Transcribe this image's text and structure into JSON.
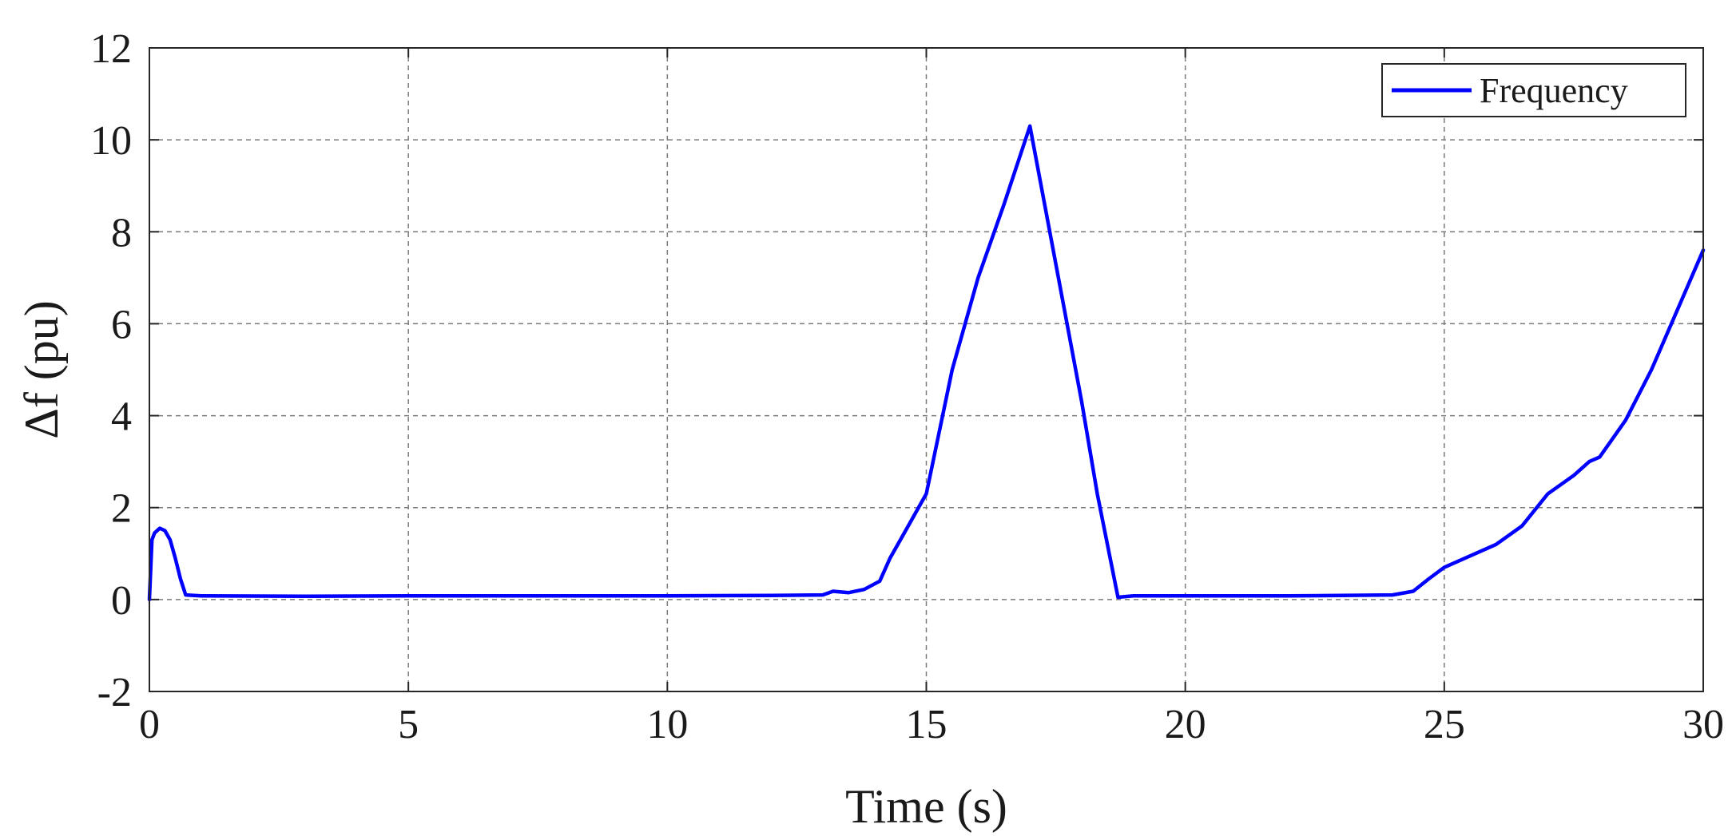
{
  "chart_data": {
    "type": "line",
    "title": "",
    "xlabel": "Time (s)",
    "ylabel": "Δf (pu)",
    "xlim": [
      0,
      30
    ],
    "ylim": [
      -2,
      12
    ],
    "xticks": [
      0,
      5,
      10,
      15,
      20,
      25,
      30
    ],
    "yticks": [
      -2,
      0,
      2,
      4,
      6,
      8,
      10,
      12
    ],
    "grid": true,
    "legend_position": "top-right",
    "series": [
      {
        "name": "Frequency",
        "color": "#0000ff",
        "x": [
          0,
          0.05,
          0.1,
          0.2,
          0.3,
          0.4,
          0.5,
          0.6,
          0.7,
          1,
          3,
          5,
          8,
          10,
          12,
          13,
          13.2,
          13.5,
          13.8,
          14.1,
          14.3,
          14.6,
          15,
          15.5,
          16,
          16.5,
          17,
          17.5,
          18,
          18.3,
          18.7,
          19,
          20,
          22,
          24,
          24.4,
          24.7,
          25,
          25.5,
          26,
          26.5,
          27,
          27.5,
          27.8,
          28,
          28.5,
          29,
          29.5,
          30
        ],
        "y": [
          0,
          1.3,
          1.45,
          1.55,
          1.5,
          1.3,
          0.9,
          0.45,
          0.1,
          0.08,
          0.07,
          0.08,
          0.08,
          0.08,
          0.09,
          0.1,
          0.18,
          0.15,
          0.22,
          0.4,
          0.9,
          1.5,
          2.3,
          5.0,
          7.0,
          8.6,
          10.3,
          7.3,
          4.3,
          2.3,
          0.05,
          0.08,
          0.08,
          0.08,
          0.1,
          0.18,
          0.45,
          0.7,
          0.95,
          1.2,
          1.6,
          2.3,
          2.7,
          3.0,
          3.1,
          3.9,
          5.0,
          6.3,
          7.6
        ]
      }
    ]
  }
}
